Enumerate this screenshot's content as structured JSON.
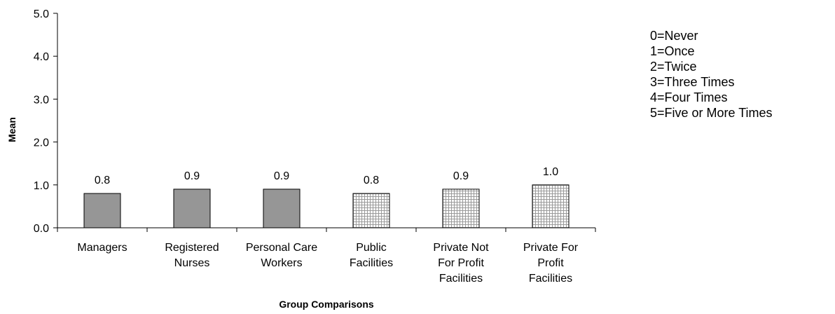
{
  "chart_data": {
    "type": "bar",
    "categories": [
      [
        "Managers"
      ],
      [
        "Registered",
        "Nurses"
      ],
      [
        "Personal Care",
        "Workers"
      ],
      [
        "Public",
        "Facilities"
      ],
      [
        "Private Not",
        "For Profit",
        "Facilities"
      ],
      [
        "Private For",
        "Profit",
        "Facilities"
      ]
    ],
    "values": [
      0.8,
      0.9,
      0.9,
      0.8,
      0.9,
      1.0
    ],
    "value_labels": [
      "0.8",
      "0.9",
      "0.9",
      "0.8",
      "0.9",
      "1.0"
    ],
    "bar_fill": [
      "solid",
      "solid",
      "solid",
      "grid",
      "grid",
      "grid"
    ],
    "xlabel": "Group Comparisons",
    "ylabel": "Mean",
    "ylim": [
      0,
      5
    ],
    "yticks": [
      "0.0",
      "1.0",
      "2.0",
      "3.0",
      "4.0",
      "5.0"
    ],
    "grid": false,
    "legend_position": "right",
    "legend": [
      "0=Never",
      "1=Once",
      "2=Twice",
      "3=Three Times",
      "4=Four Times",
      "5=Five or More Times"
    ],
    "colors": {
      "solid_bar": "#969696",
      "grid_bar_line": "#a0a0a0",
      "axis": "#000000"
    }
  }
}
